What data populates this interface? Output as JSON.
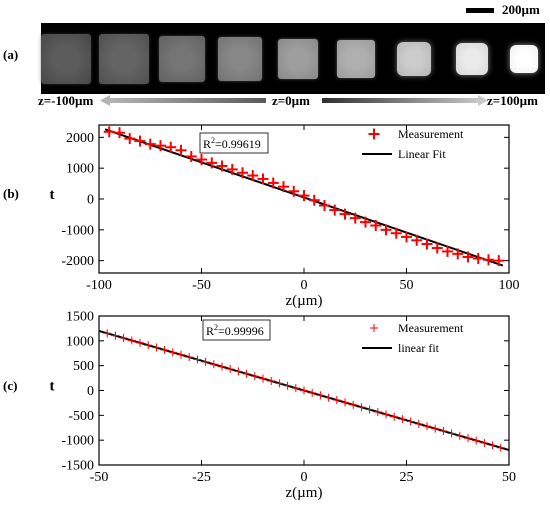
{
  "panels": {
    "a": "(a)",
    "b": "(b)",
    "c": "(c)"
  },
  "image_strip": {
    "scale_bar_label": "200µm",
    "z_labels": {
      "left": "z=-100µm",
      "center": "z=0µm",
      "right": "z=100µm"
    },
    "frame_count": 9,
    "brightness": [
      0.29,
      0.32,
      0.39,
      0.46,
      0.55,
      0.62,
      0.73,
      0.85,
      0.95
    ]
  },
  "chart_data": [
    {
      "type": "scatter",
      "xlabel": "z(µm)",
      "ylabel": "t",
      "xlim": [
        -100,
        100
      ],
      "ylim": [
        -2400,
        2400
      ],
      "xticks": [
        -100,
        -50,
        0,
        50,
        100
      ],
      "yticks": [
        2000,
        1000,
        0,
        -1000,
        -2000
      ],
      "annotation": {
        "prefix": "R",
        "sup": "2",
        "value": "=0.99619"
      },
      "series": [
        {
          "name": "Measurement",
          "marker": "+",
          "color": "#ff0000",
          "x": [
            -95,
            -90,
            -85,
            -80,
            -75,
            -70,
            -65,
            -60,
            -55,
            -50,
            -45,
            -40,
            -35,
            -30,
            -25,
            -20,
            -15,
            -10,
            -5,
            0,
            5,
            10,
            15,
            20,
            25,
            30,
            35,
            40,
            45,
            50,
            55,
            60,
            65,
            70,
            75,
            80,
            85,
            90,
            95
          ],
          "y": [
            2180,
            2150,
            1960,
            1880,
            1780,
            1730,
            1680,
            1580,
            1380,
            1280,
            1170,
            1070,
            960,
            850,
            760,
            650,
            520,
            400,
            250,
            110,
            -40,
            -210,
            -360,
            -490,
            -620,
            -750,
            -860,
            -1000,
            -1110,
            -1230,
            -1340,
            -1460,
            -1590,
            -1700,
            -1780,
            -1880,
            -1930,
            -1970,
            -2000
          ]
        },
        {
          "name": "Linear Fit",
          "type": "line",
          "color": "#000000",
          "x": [
            -97,
            97
          ],
          "y": [
            2260,
            -2160
          ]
        }
      ],
      "legend": "top-right"
    },
    {
      "type": "scatter",
      "xlabel": "z(µm)",
      "ylabel": "t",
      "xlim": [
        -50,
        50
      ],
      "ylim": [
        -1500,
        1500
      ],
      "xticks": [
        -50,
        -25,
        0,
        25,
        50
      ],
      "yticks": [
        1500,
        1000,
        500,
        0,
        -500,
        -1000,
        -1500
      ],
      "annotation": {
        "prefix": "R",
        "sup": "2",
        "value": "=0.99996"
      },
      "series": [
        {
          "name": "Measurement",
          "marker": "+",
          "color": "#ff0000",
          "x": [
            -48,
            -46,
            -44,
            -42,
            -40,
            -38,
            -36,
            -34,
            -32,
            -30,
            -28,
            -26,
            -24,
            -22,
            -20,
            -18,
            -16,
            -14,
            -12,
            -10,
            -8,
            -6,
            -4,
            -2,
            0,
            2,
            4,
            6,
            8,
            10,
            12,
            14,
            16,
            18,
            20,
            22,
            24,
            26,
            28,
            30,
            32,
            34,
            36,
            38,
            40,
            42,
            44,
            46,
            48
          ],
          "y": [
            1152,
            1104,
            1056,
            1008,
            960,
            912,
            864,
            816,
            768,
            720,
            672,
            624,
            576,
            528,
            480,
            432,
            384,
            336,
            288,
            240,
            192,
            144,
            96,
            48,
            0,
            -48,
            -96,
            -144,
            -192,
            -240,
            -288,
            -336,
            -384,
            -432,
            -480,
            -528,
            -576,
            -624,
            -672,
            -720,
            -768,
            -816,
            -864,
            -912,
            -960,
            -1008,
            -1056,
            -1104,
            -1152
          ]
        },
        {
          "name": "linear fit",
          "type": "line",
          "color": "#000000",
          "x": [
            -50,
            50
          ],
          "y": [
            1200,
            -1200
          ]
        }
      ],
      "legend": "top-right"
    }
  ]
}
